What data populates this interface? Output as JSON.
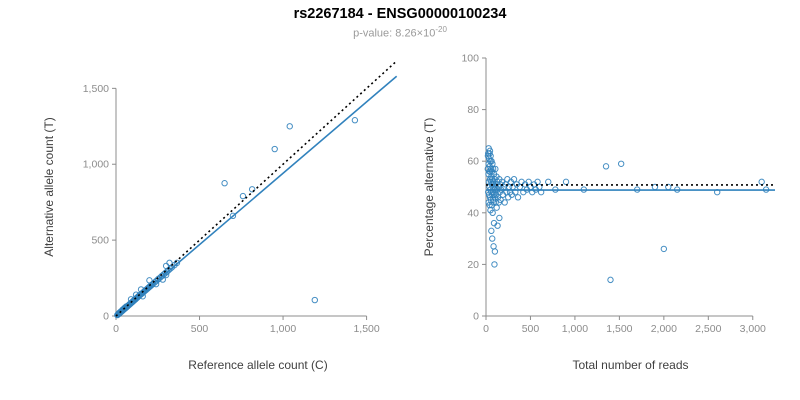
{
  "header": {
    "title": "rs2267184 - ENSG00000100234",
    "pvalue_prefix": "p-value: 8.26×10",
    "pvalue_exponent": "-20"
  },
  "style": {
    "point_color": "#3182bd",
    "fit_line_color": "#3182bd",
    "ref_line_color": "#000000",
    "axis_color": "#8c8c8c",
    "tick_label_color": "#8c8c8c"
  },
  "chart_data": [
    {
      "type": "scatter",
      "panel": "left",
      "xlabel": "Reference allele count (C)",
      "ylabel": "Alternative allele count (T)",
      "xlim": [
        0,
        1700
      ],
      "ylim": [
        0,
        1700
      ],
      "grid": false,
      "xticks": [
        0,
        500,
        1000,
        1500
      ],
      "xtick_labels": [
        "0",
        "500",
        "1,000",
        "1,500"
      ],
      "yticks": [
        0,
        500,
        1000,
        1500
      ],
      "ytick_labels": [
        "0",
        "500",
        "1,000",
        "1,500"
      ],
      "point_color": "#3182bd",
      "points": [
        [
          8,
          6
        ],
        [
          10,
          9
        ],
        [
          12,
          10
        ],
        [
          14,
          12
        ],
        [
          15,
          14
        ],
        [
          16,
          13
        ],
        [
          18,
          16
        ],
        [
          20,
          17
        ],
        [
          20,
          21
        ],
        [
          22,
          19
        ],
        [
          24,
          22
        ],
        [
          25,
          24
        ],
        [
          26,
          23
        ],
        [
          28,
          26
        ],
        [
          30,
          27
        ],
        [
          30,
          31
        ],
        [
          32,
          29
        ],
        [
          34,
          31
        ],
        [
          35,
          33
        ],
        [
          36,
          34
        ],
        [
          38,
          35
        ],
        [
          40,
          37
        ],
        [
          40,
          42
        ],
        [
          42,
          39
        ],
        [
          44,
          41
        ],
        [
          45,
          44
        ],
        [
          46,
          42
        ],
        [
          48,
          45
        ],
        [
          50,
          47
        ],
        [
          50,
          52
        ],
        [
          52,
          48
        ],
        [
          55,
          51
        ],
        [
          58,
          54
        ],
        [
          60,
          56
        ],
        [
          60,
          62
        ],
        [
          63,
          58
        ],
        [
          65,
          61
        ],
        [
          68,
          63
        ],
        [
          70,
          66
        ],
        [
          72,
          68
        ],
        [
          75,
          70
        ],
        [
          78,
          73
        ],
        [
          80,
          75
        ],
        [
          82,
          78
        ],
        [
          85,
          80
        ],
        [
          88,
          83
        ],
        [
          90,
          85
        ],
        [
          90,
          110
        ],
        [
          92,
          88
        ],
        [
          95,
          90
        ],
        [
          98,
          92
        ],
        [
          100,
          95
        ],
        [
          103,
          98
        ],
        [
          105,
          100
        ],
        [
          108,
          103
        ],
        [
          110,
          105
        ],
        [
          113,
          108
        ],
        [
          115,
          110
        ],
        [
          118,
          112
        ],
        [
          120,
          115
        ],
        [
          120,
          140
        ],
        [
          123,
          118
        ],
        [
          125,
          120
        ],
        [
          128,
          122
        ],
        [
          130,
          125
        ],
        [
          135,
          130
        ],
        [
          138,
          132
        ],
        [
          140,
          135
        ],
        [
          145,
          140
        ],
        [
          150,
          143
        ],
        [
          150,
          175
        ],
        [
          155,
          148
        ],
        [
          160,
          130
        ],
        [
          160,
          153
        ],
        [
          165,
          158
        ],
        [
          170,
          163
        ],
        [
          175,
          168
        ],
        [
          180,
          172
        ],
        [
          185,
          177
        ],
        [
          190,
          182
        ],
        [
          195,
          187
        ],
        [
          200,
          192
        ],
        [
          200,
          235
        ],
        [
          205,
          196
        ],
        [
          210,
          201
        ],
        [
          215,
          206
        ],
        [
          220,
          211
        ],
        [
          230,
          220
        ],
        [
          240,
          210
        ],
        [
          240,
          230
        ],
        [
          250,
          240
        ],
        [
          255,
          245
        ],
        [
          265,
          254
        ],
        [
          275,
          264
        ],
        [
          280,
          240
        ],
        [
          285,
          273
        ],
        [
          295,
          283
        ],
        [
          300,
          270
        ],
        [
          300,
          330
        ],
        [
          305,
          292
        ],
        [
          315,
          302
        ],
        [
          320,
          350
        ],
        [
          325,
          312
        ],
        [
          335,
          321
        ],
        [
          350,
          335
        ],
        [
          365,
          350
        ],
        [
          650,
          875
        ],
        [
          700,
          660
        ],
        [
          760,
          790
        ],
        [
          815,
          835
        ],
        [
          950,
          1100
        ],
        [
          1040,
          1250
        ],
        [
          1190,
          105
        ],
        [
          1430,
          1290
        ]
      ],
      "lines": [
        {
          "name": "fit-line",
          "x1": 0,
          "y1": 0,
          "x2": 1680,
          "y2": 1580,
          "dashed": false,
          "color": "#3182bd"
        },
        {
          "name": "identity-line",
          "x1": 0,
          "y1": 0,
          "x2": 1680,
          "y2": 1680,
          "dashed": true,
          "color": "#000000"
        }
      ]
    },
    {
      "type": "scatter",
      "panel": "right",
      "xlabel": "Total number of reads",
      "ylabel": "Percentage alternative (T)",
      "xlim": [
        0,
        3250
      ],
      "ylim": [
        0,
        100
      ],
      "grid": false,
      "xticks": [
        0,
        500,
        1000,
        1500,
        2000,
        2500,
        3000
      ],
      "xtick_labels": [
        "0",
        "500",
        "1,000",
        "1,500",
        "2,000",
        "2,500",
        "3,000"
      ],
      "yticks": [
        0,
        20,
        40,
        60,
        80,
        100
      ],
      "ytick_labels": [
        "0",
        "20",
        "40",
        "60",
        "80",
        "100"
      ],
      "point_color": "#3182bd",
      "points": [
        [
          20,
          57
        ],
        [
          22,
          62
        ],
        [
          25,
          48
        ],
        [
          25,
          63
        ],
        [
          28,
          55
        ],
        [
          30,
          44
        ],
        [
          30,
          59
        ],
        [
          30,
          65
        ],
        [
          32,
          52
        ],
        [
          35,
          47
        ],
        [
          35,
          61
        ],
        [
          38,
          56
        ],
        [
          40,
          43
        ],
        [
          40,
          50
        ],
        [
          40,
          63
        ],
        [
          42,
          58
        ],
        [
          45,
          46
        ],
        [
          45,
          53
        ],
        [
          45,
          64
        ],
        [
          48,
          60
        ],
        [
          50,
          41
        ],
        [
          50,
          49
        ],
        [
          50,
          56
        ],
        [
          52,
          62
        ],
        [
          55,
          45
        ],
        [
          55,
          52
        ],
        [
          58,
          57
        ],
        [
          60,
          33
        ],
        [
          60,
          48
        ],
        [
          60,
          54
        ],
        [
          62,
          60
        ],
        [
          65,
          43
        ],
        [
          65,
          51
        ],
        [
          68,
          56
        ],
        [
          70,
          30
        ],
        [
          70,
          47
        ],
        [
          70,
          53
        ],
        [
          72,
          59
        ],
        [
          75,
          40
        ],
        [
          75,
          50
        ],
        [
          78,
          45
        ],
        [
          80,
          52
        ],
        [
          80,
          57
        ],
        [
          82,
          48
        ],
        [
          85,
          27
        ],
        [
          85,
          44
        ],
        [
          88,
          51
        ],
        [
          90,
          36
        ],
        [
          90,
          55
        ],
        [
          92,
          47
        ],
        [
          95,
          20
        ],
        [
          95,
          50
        ],
        [
          98,
          53
        ],
        [
          100,
          25
        ],
        [
          100,
          46
        ],
        [
          103,
          49
        ],
        [
          105,
          57
        ],
        [
          108,
          44
        ],
        [
          110,
          51
        ],
        [
          115,
          47
        ],
        [
          118,
          54
        ],
        [
          120,
          42
        ],
        [
          125,
          49
        ],
        [
          130,
          35
        ],
        [
          130,
          52
        ],
        [
          135,
          46
        ],
        [
          140,
          50
        ],
        [
          145,
          44
        ],
        [
          150,
          38
        ],
        [
          150,
          53
        ],
        [
          155,
          48
        ],
        [
          160,
          51
        ],
        [
          165,
          45
        ],
        [
          170,
          49
        ],
        [
          180,
          52
        ],
        [
          190,
          47
        ],
        [
          200,
          50
        ],
        [
          210,
          44
        ],
        [
          220,
          51
        ],
        [
          230,
          48
        ],
        [
          240,
          53
        ],
        [
          250,
          46
        ],
        [
          260,
          50
        ],
        [
          270,
          48
        ],
        [
          280,
          52
        ],
        [
          290,
          47
        ],
        [
          300,
          50
        ],
        [
          315,
          53
        ],
        [
          330,
          48
        ],
        [
          345,
          51
        ],
        [
          360,
          46
        ],
        [
          380,
          50
        ],
        [
          400,
          52
        ],
        [
          420,
          48
        ],
        [
          440,
          51
        ],
        [
          460,
          49
        ],
        [
          480,
          52
        ],
        [
          500,
          50
        ],
        [
          520,
          48
        ],
        [
          540,
          51
        ],
        [
          560,
          49
        ],
        [
          580,
          52
        ],
        [
          600,
          50
        ],
        [
          620,
          48
        ],
        [
          700,
          52
        ],
        [
          780,
          49
        ],
        [
          900,
          52
        ],
        [
          1100,
          49
        ],
        [
          1350,
          58
        ],
        [
          1400,
          14
        ],
        [
          1520,
          59
        ],
        [
          1700,
          49
        ],
        [
          1900,
          50
        ],
        [
          2000,
          26
        ],
        [
          2050,
          50
        ],
        [
          2150,
          49
        ],
        [
          2600,
          48
        ],
        [
          3100,
          52
        ],
        [
          3150,
          49
        ]
      ],
      "lines": [
        {
          "name": "fit-line",
          "x1": 0,
          "y1": 48.8,
          "x2": 3250,
          "y2": 48.8,
          "dashed": false,
          "color": "#3182bd"
        },
        {
          "name": "expected-line",
          "x1": 0,
          "y1": 50.8,
          "x2": 3250,
          "y2": 50.8,
          "dashed": true,
          "color": "#000000"
        }
      ]
    }
  ]
}
